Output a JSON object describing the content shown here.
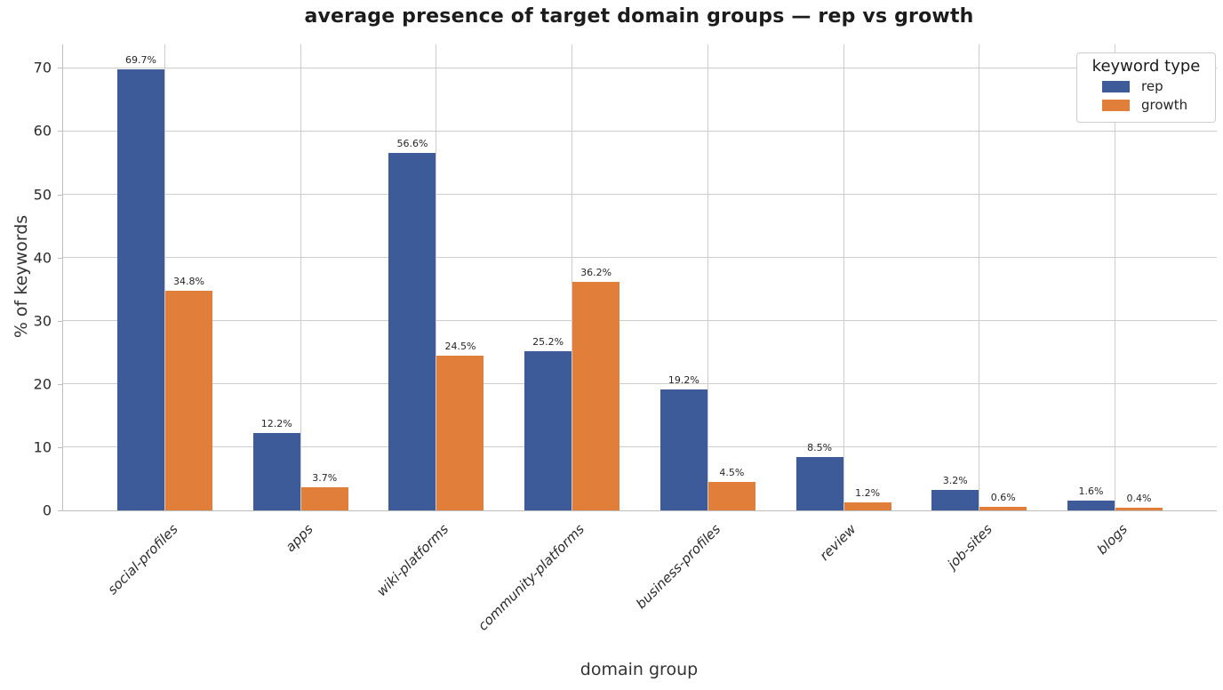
{
  "title": "average presence of target domain groups — rep vs growth",
  "chart_data": {
    "type": "bar",
    "title": "average presence of target domain groups — rep vs growth",
    "xlabel": "domain group",
    "ylabel": "% of keywords",
    "categories": [
      "social-profiles",
      "apps",
      "wiki-platforms",
      "community-platforms",
      "business-profiles",
      "review",
      "job-sites",
      "blogs"
    ],
    "series": [
      {
        "name": "rep",
        "color": "#3d5a99",
        "values": [
          69.7,
          12.2,
          56.6,
          25.2,
          19.2,
          8.5,
          3.2,
          1.6
        ],
        "labels": [
          "69.7%",
          "12.2%",
          "56.6%",
          "25.2%",
          "19.2%",
          "8.5%",
          "3.2%",
          "1.6%"
        ]
      },
      {
        "name": "growth",
        "color": "#e07e3a",
        "values": [
          34.8,
          3.7,
          24.5,
          36.2,
          4.5,
          1.2,
          0.6,
          0.4
        ],
        "labels": [
          "34.8%",
          "3.7%",
          "24.5%",
          "36.2%",
          "4.5%",
          "1.2%",
          "0.6%",
          "0.4%"
        ]
      }
    ],
    "ylim": [
      0,
      73.7
    ],
    "yticks": [
      0,
      10,
      20,
      30,
      40,
      50,
      60,
      70
    ],
    "grid": "horizontal and vertical light-gray gridlines",
    "legend": {
      "title": "keyword type",
      "position": "upper right"
    },
    "colors": {
      "grid": "#cdcdcd",
      "spine": "#bfbfbf",
      "text": "#262626"
    }
  }
}
